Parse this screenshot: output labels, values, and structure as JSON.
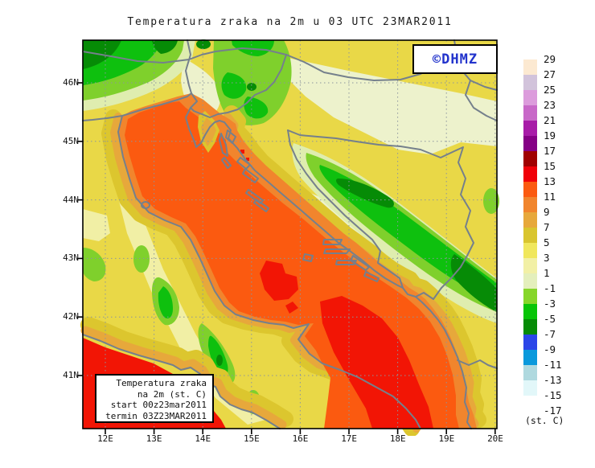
{
  "title": "Temperatura zraka na 2m u 03 UTC 23MAR2011",
  "branding": {
    "logo_text": "©DHMZ",
    "logo_color": "#2233cc"
  },
  "info_box": {
    "lines": [
      "Temperatura zraka",
      "na 2m (st. C)",
      "start 00z23mar2011",
      "termin 03Z23MAR2011"
    ]
  },
  "axes": {
    "lat_labels": [
      "46N",
      "45N",
      "44N",
      "43N",
      "42N",
      "41N"
    ],
    "lon_labels": [
      "12E",
      "13E",
      "14E",
      "15E",
      "16E",
      "17E",
      "18E",
      "19E",
      "20E"
    ]
  },
  "colorbar": {
    "unit_label": "(st. C)",
    "tick_labels": [
      "29",
      "27",
      "25",
      "23",
      "21",
      "19",
      "17",
      "15",
      "13",
      "11",
      "9",
      "7",
      "5",
      "3",
      "1",
      "-1",
      "-3",
      "-5",
      "-7",
      "-9",
      "-11",
      "-13",
      "-15",
      "-17"
    ],
    "box_colors": [
      "#FCE9D1",
      "#D2C3DB",
      "#DC9CDC",
      "#C868C8",
      "#A81CA8",
      "#850085",
      "#A00000",
      "#F00008",
      "#FB5A10",
      "#F1852D",
      "#E7A83B",
      "#D9C52F",
      "#F0E75C",
      "#F2F0A6",
      "#E4EFBC",
      "#86D62A",
      "#08C508",
      "#068B06",
      "#2B46E8",
      "#0A99DC",
      "#AFD9DF",
      "#E2F7F9",
      "#FFFFFF"
    ]
  },
  "map_palette": {
    "sea_orange": "#F1852D",
    "warm_core_orange": "#FB5A10",
    "hot_red": "#F21505",
    "base_yellow": "#E9D847",
    "mountain_green": "#0EC00E",
    "coastline_gray": "#75808C"
  }
}
